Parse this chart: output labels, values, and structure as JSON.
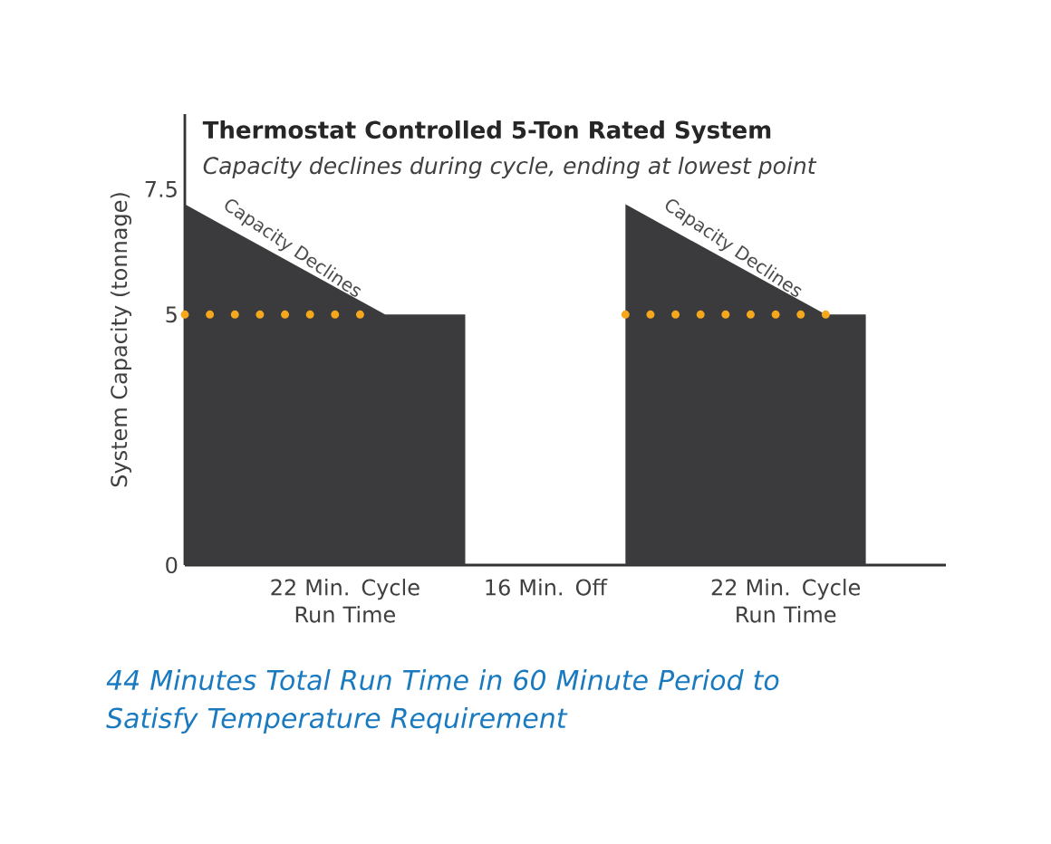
{
  "chart_data": {
    "type": "area",
    "title": "Thermostat Controlled 5-Ton Rated System",
    "subtitle": "Capacity declines during cycle, ending at lowest point",
    "ylabel": "System Capacity (tonnage)",
    "categories": [
      null,
      null,
      null,
      null,
      "22 Min. Cycle Run Time",
      null,
      null,
      null,
      null,
      "16 Min. Off",
      null,
      null,
      null,
      null,
      null,
      "22 Min. Cycle Run Time",
      null,
      null,
      null,
      null
    ],
    "ylim": [
      0,
      9
    ],
    "yticks": [
      0,
      5,
      7.5
    ],
    "series": [
      {
        "color": "#3b3b3d",
        "values": [
          7.2,
          6.76,
          6.32,
          5.88,
          5.44,
          5,
          5,
          5,
          null,
          null,
          null,
          7.2,
          6.76,
          6.32,
          5.88,
          5.44,
          5,
          5,
          null,
          null
        ]
      },
      {
        "type": "line",
        "line_style": "dotted",
        "color": "#f6a81c",
        "values": [
          5,
          5,
          5,
          5,
          5,
          5,
          null,
          null,
          null,
          null,
          null,
          5,
          5,
          5,
          5,
          5,
          5,
          null,
          null,
          null
        ]
      }
    ],
    "annotations": [
      "Capacity Declines",
      "Capacity Declines",
      "44 Minutes Total Run Time in 60 Minute Period to Satisfy Temperature Requirement"
    ],
    "grid": false
  }
}
